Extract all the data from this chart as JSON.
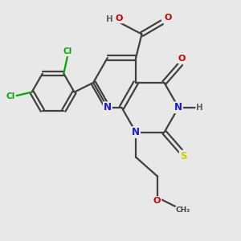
{
  "bg_color": "#e8e8e8",
  "atom_colors": {
    "C": "#404040",
    "N": "#1a1acc",
    "O": "#cc0000",
    "S": "#cccc00",
    "Cl": "#00aa00",
    "H": "#606060"
  },
  "bond_color": "#404040",
  "lw": 1.6
}
